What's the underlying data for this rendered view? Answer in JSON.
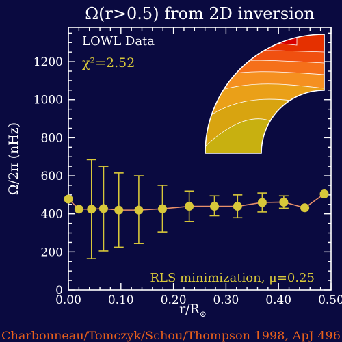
{
  "chart_data": {
    "type": "line",
    "title": "Ω(r>0.5) from 2D inversion",
    "xlabel": "r/R",
    "xlabel_sub": "⊙",
    "ylabel": "Ω/2π (nHz)",
    "xlim": [
      0.0,
      0.5
    ],
    "ylim": [
      0,
      1380
    ],
    "x_ticks": [
      0.0,
      0.1,
      0.2,
      0.3,
      0.4,
      0.5
    ],
    "x_tick_labels": [
      "0.00",
      "0.10",
      "0.20",
      "0.30",
      "0.40",
      "0.50"
    ],
    "y_ticks": [
      0,
      200,
      400,
      600,
      800,
      1000,
      1200
    ],
    "y_tick_labels": [
      "0",
      "200",
      "400",
      "600",
      "800",
      "1000",
      "1200"
    ],
    "series": [
      {
        "x": [
          0.0,
          0.02,
          0.044,
          0.067,
          0.096,
          0.134,
          0.179,
          0.23,
          0.278,
          0.322,
          0.369,
          0.41,
          0.45,
          0.487
        ],
        "values": [
          478,
          425,
          425,
          428,
          420,
          420,
          427,
          440,
          440,
          440,
          460,
          462,
          432,
          505
        ],
        "err_low": [
          null,
          null,
          165,
          205,
          225,
          245,
          305,
          360,
          390,
          380,
          410,
          430,
          null,
          null
        ],
        "err_high": [
          null,
          null,
          685,
          650,
          615,
          600,
          550,
          520,
          495,
          500,
          510,
          495,
          null,
          null
        ],
        "line_color": "#e8906a",
        "marker_color": "#d8c83a"
      }
    ],
    "annotations": {
      "dataset": "LOWL Data",
      "chi2": "χ²=2.52",
      "method": "RLS minimization, μ=0.25"
    },
    "credit": "Charbonneau/Tomczyk/Schou/Thompson 1998, ApJ 496",
    "inset": {
      "description_colors": [
        "#d80000",
        "#e53000",
        "#f05010",
        "#f5701a",
        "#f59020",
        "#eaa018",
        "#d8a410",
        "#c8b010",
        "#d8c818",
        "#e8e028"
      ]
    },
    "colors": {
      "background": "#0a0a40",
      "axes": "#ffffff",
      "annotation_yellow": "#d8c83a",
      "credit_orange": "#e8601c"
    }
  }
}
